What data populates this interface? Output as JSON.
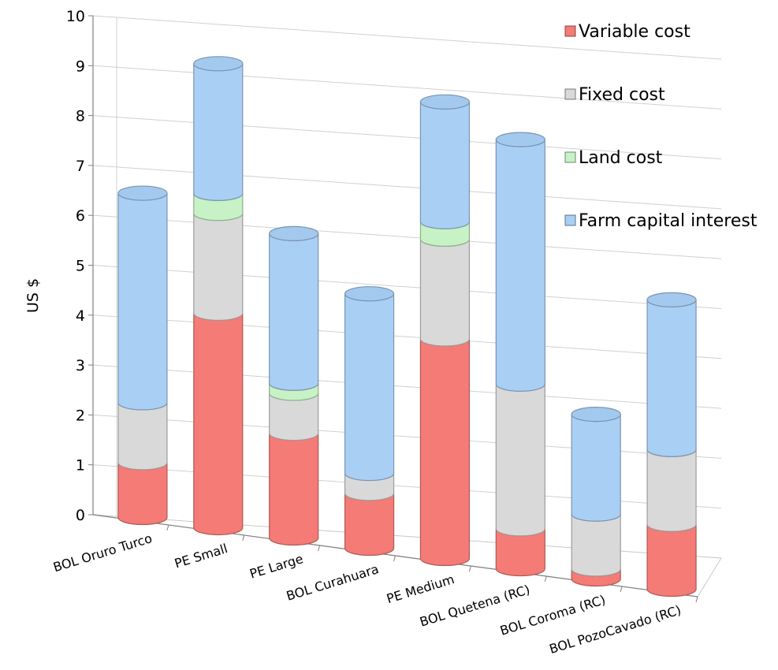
{
  "chart_data": {
    "type": "bar",
    "stacked": true,
    "style": "3d-cylinder",
    "title": "",
    "xlabel": "",
    "ylabel": "US $",
    "ylim": [
      0,
      10
    ],
    "yticks": [
      "0",
      "1",
      "2",
      "3",
      "4",
      "5",
      "6",
      "7",
      "8",
      "9",
      "10"
    ],
    "grid": true,
    "legend_position": "top-right",
    "categories": [
      "BOL Oruro Turco",
      "PE Small",
      "PE Large",
      "BOL Curahuara",
      "PE Medium",
      "BOL Quetena (RC)",
      "BOL Coroma (RC)",
      "BOL PozoCavado (RC)"
    ],
    "series": [
      {
        "name": "Variable cost",
        "color": "#f47b76",
        "values": [
          1.1,
          4.3,
          2.1,
          1.1,
          4.4,
          0.8,
          0.2,
          1.3
        ]
      },
      {
        "name": "Fixed cost",
        "color": "#d9d9d9",
        "values": [
          1.2,
          2.0,
          0.8,
          0.4,
          2.0,
          2.9,
          1.1,
          1.5
        ]
      },
      {
        "name": "Land cost",
        "color": "#c6f2c6",
        "values": [
          0.0,
          0.4,
          0.2,
          0.0,
          0.35,
          0.0,
          0.0,
          0.0
        ]
      },
      {
        "name": "Farm capital interest",
        "color": "#a9cff5",
        "values": [
          4.2,
          2.6,
          3.0,
          3.6,
          2.4,
          4.9,
          2.0,
          3.0
        ]
      }
    ]
  }
}
